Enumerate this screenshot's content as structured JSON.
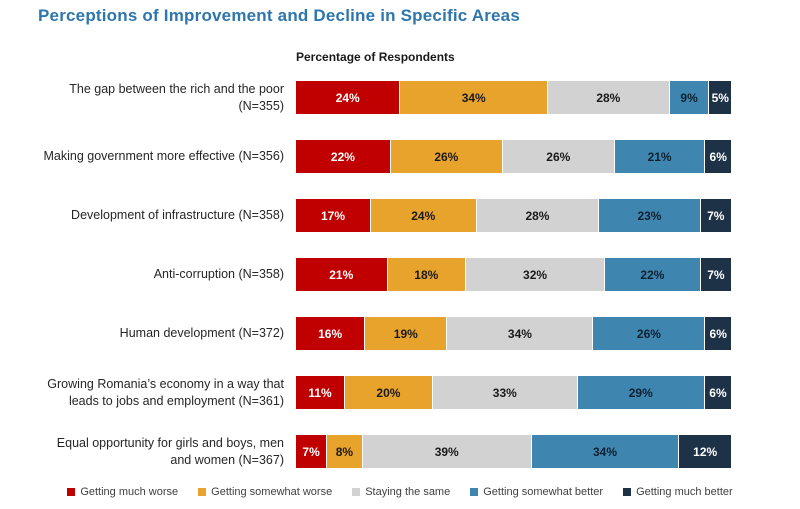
{
  "page": {
    "title": "Perceptions of Improvement and Decline in Specific Areas",
    "axis_note": "Percentage of Respondents",
    "title_color": "#2F76AD"
  },
  "chart_data": {
    "type": "bar",
    "orientation": "horizontal",
    "stacked": true,
    "title": "Perceptions of Improvement and Decline in Specific Areas",
    "axis_label": "Percentage of Respondents",
    "value_suffix": "%",
    "legend_position": "bottom",
    "categories": [
      "The gap between the rich and the poor (N=355)",
      "Making government more effective (N=356)",
      "Development of infrastructure (N=358)",
      "Anti-corruption (N=358)",
      "Human development (N=372)",
      "Growing Romania’s economy in a way that leads to jobs and employment (N=361)",
      "Equal opportunity for girls and boys, men and women (N=367)"
    ],
    "series": [
      {
        "name": "Getting much worse",
        "color": "#C00000",
        "label_color": "#FFFFFF",
        "values": [
          24,
          22,
          17,
          21,
          16,
          11,
          7
        ]
      },
      {
        "name": "Getting somewhat worse",
        "color": "#E8A32C",
        "label_color": "#1A1A1A",
        "values": [
          34,
          26,
          24,
          18,
          19,
          20,
          8
        ]
      },
      {
        "name": "Staying the same",
        "color": "#D2D2D2",
        "label_color": "#1A1A1A",
        "values": [
          28,
          26,
          28,
          32,
          34,
          33,
          39
        ]
      },
      {
        "name": "Getting somewhat better",
        "color": "#3E86B0",
        "label_color": "#10202F",
        "values": [
          9,
          21,
          23,
          22,
          26,
          29,
          34
        ]
      },
      {
        "name": "Getting much better",
        "color": "#1E3247",
        "label_color": "#FFFFFF",
        "values": [
          5,
          6,
          7,
          7,
          6,
          6,
          12
        ]
      }
    ]
  }
}
